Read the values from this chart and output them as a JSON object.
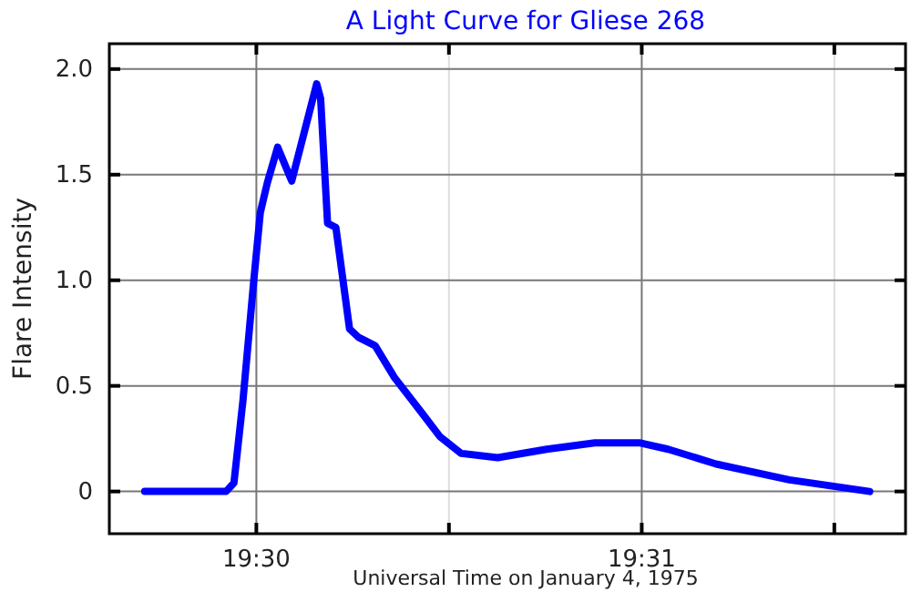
{
  "chart_data": {
    "type": "line",
    "title": "A Light Curve for Gliese 268",
    "xlabel": "Universal Time on January 4, 1975",
    "ylabel": "Flare Intensity",
    "x": [
      19.49517,
      19.49869,
      19.49903,
      19.49942,
      19.49989,
      19.50017,
      19.50047,
      19.50092,
      19.50153,
      19.50261,
      19.50278,
      19.50308,
      19.50344,
      19.50403,
      19.50442,
      19.50514,
      19.50597,
      19.50717,
      19.50794,
      19.50886,
      19.51044,
      19.51256,
      19.51464,
      19.51661,
      19.51781,
      19.51989,
      19.52306,
      19.52653
    ],
    "series": [
      {
        "color": "#0000ff",
        "values": [
          0,
          0,
          0.04,
          0.43,
          1.0,
          1.32,
          1.46,
          1.63,
          1.47,
          1.93,
          1.86,
          1.27,
          1.25,
          0.77,
          0.73,
          0.69,
          0.54,
          0.37,
          0.26,
          0.18,
          0.16,
          0.2,
          0.23,
          0.23,
          0.2,
          0.13,
          0.055,
          0
        ]
      }
    ],
    "xlim": [
      19.49364,
      19.52808
    ],
    "ylim": [
      -0.2,
      2.12
    ],
    "xticks": [
      {
        "value": 19.5,
        "label": "19:30"
      },
      {
        "value": 19.50833,
        "label": null
      },
      {
        "value": 19.51667,
        "label": "19:31"
      },
      {
        "value": 19.525,
        "label": null
      }
    ],
    "yticks": [
      0,
      0.5,
      {
        "value": 1,
        "label": "1.0"
      },
      1.5,
      {
        "value": 2,
        "label": "2.0"
      }
    ],
    "grid": true,
    "marker": "none",
    "line_style": "solid"
  }
}
